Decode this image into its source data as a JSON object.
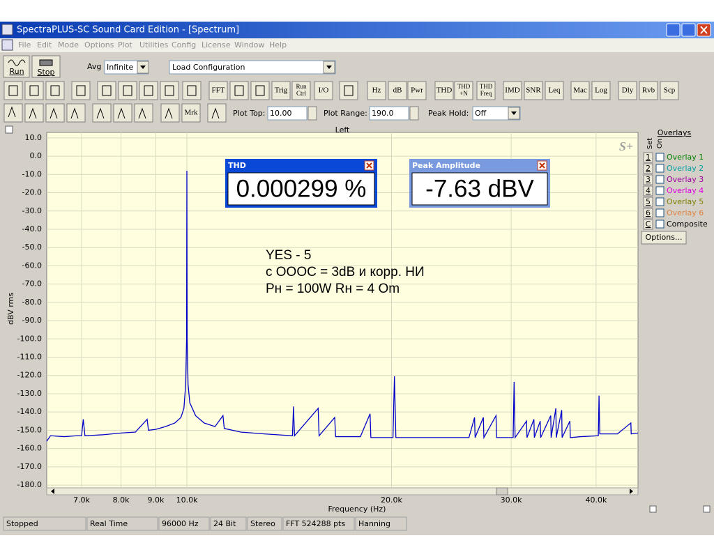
{
  "window": {
    "title": "SpectraPLUS-SC Sound Card Edition - [Spectrum]"
  },
  "menu": [
    "File",
    "Edit",
    "Mode",
    "Options",
    "Plot",
    "Utilities",
    "Config",
    "License",
    "Window",
    "Help"
  ],
  "toolbar": {
    "run": "Run",
    "stop": "Stop",
    "avg_label": "Avg",
    "avg_value": "Infinite",
    "config": "Load Configuration",
    "buttons": [
      [
        "FFT"
      ],
      [
        "Trig"
      ],
      [
        "Run",
        "Ctrl"
      ],
      [
        "I/O"
      ],
      [
        "Hz"
      ],
      [
        "dB"
      ],
      [
        "Pwr"
      ],
      [
        "THD"
      ],
      [
        "THD",
        "+N"
      ],
      [
        "THD",
        "Freq"
      ],
      [
        "IMD"
      ],
      [
        "SNR"
      ],
      [
        "Leq"
      ],
      [
        "Mac"
      ],
      [
        "Log"
      ],
      [
        "Dly"
      ],
      [
        "Rvb"
      ],
      [
        "Scp"
      ]
    ],
    "marker": "Mrk",
    "plot_top_label": "Plot Top:",
    "plot_top": "10.00",
    "plot_range_label": "Plot Range:",
    "plot_range": "190.0",
    "peak_hold_label": "Peak Hold:",
    "peak_hold": "Off"
  },
  "chart_data": {
    "type": "line",
    "title": "Left",
    "x_label": "Frequency (Hz)",
    "y_label": "dBV rms",
    "watermark": "S+",
    "x_log": true,
    "grid": true,
    "color": "#0000c8",
    "x": [
      6220,
      6300,
      6600,
      6900,
      7000,
      7040,
      7080,
      7500,
      8000,
      8400,
      8740,
      8780,
      9000,
      9300,
      9600,
      9800,
      9900,
      9960,
      9990,
      10000,
      10010,
      10040,
      10100,
      10300,
      10600,
      11000,
      11300,
      11350,
      12000,
      13000,
      14300,
      14350,
      14400,
      15600,
      15650,
      16500,
      16550,
      18000,
      18600,
      18650,
      20100,
      20200,
      20300,
      23000,
      26000,
      26500,
      26550,
      27300,
      27350,
      28500,
      28550,
      30200,
      30300,
      30400,
      31600,
      31650,
      32400,
      32450,
      33100,
      33150,
      34300,
      34350,
      34900,
      34950,
      35600,
      35650,
      36600,
      36650,
      38000,
      40300,
      40400,
      40500,
      43000,
      45000,
      45050,
      46100
    ],
    "values": [
      -156,
      -153,
      -153.5,
      -153,
      -153,
      -144,
      -153,
      -152.5,
      -151.5,
      -151,
      -144,
      -150,
      -149.5,
      -148,
      -146,
      -143,
      -138,
      -125,
      -100,
      -8,
      -100,
      -125,
      -135,
      -142,
      -146,
      -148,
      -142,
      -149,
      -151,
      -152,
      -153,
      -137,
      -153,
      -138,
      -153,
      -143,
      -153.5,
      -153.5,
      -141,
      -154,
      -154,
      -120.5,
      -154,
      -154,
      -154,
      -143,
      -154,
      -143,
      -154,
      -142,
      -154,
      -154,
      -123.5,
      -154,
      -145,
      -154,
      -144,
      -154,
      -145,
      -154,
      -142,
      -154,
      -138,
      -154,
      -139,
      -154,
      -145,
      -154,
      -153.5,
      -153,
      -131,
      -152,
      -152,
      -146,
      -152,
      -151.5
    ],
    "xlim": [
      6220,
      46100
    ],
    "ylim": [
      -181.5,
      13
    ],
    "xticks": [
      {
        "value": 7000,
        "label": "7.0k"
      },
      {
        "value": 8000,
        "label": "8.0k"
      },
      {
        "value": 9000,
        "label": "9.0k"
      },
      {
        "value": 10000,
        "label": "10.0k"
      },
      {
        "value": 20000,
        "label": "20.0k"
      },
      {
        "value": 30000,
        "label": "30.0k"
      },
      {
        "value": 40000,
        "label": "40.0k"
      }
    ],
    "yticks": [
      {
        "value": 10,
        "label": "10.0"
      },
      {
        "value": 0,
        "label": "0.0"
      },
      {
        "value": -10,
        "label": "-10.0"
      },
      {
        "value": -20,
        "label": "-20.0"
      },
      {
        "value": -30,
        "label": "-30.0"
      },
      {
        "value": -40,
        "label": "-40.0"
      },
      {
        "value": -50,
        "label": "-50.0"
      },
      {
        "value": -60,
        "label": "-60.0"
      },
      {
        "value": -70,
        "label": "-70.0"
      },
      {
        "value": -80,
        "label": "-80.0"
      },
      {
        "value": -90,
        "label": "-90.0"
      },
      {
        "value": -100,
        "label": "-100.0"
      },
      {
        "value": -110,
        "label": "-110.0"
      },
      {
        "value": -120,
        "label": "-120.0"
      },
      {
        "value": -130,
        "label": "-130.0"
      },
      {
        "value": -140,
        "label": "-140.0"
      },
      {
        "value": -150,
        "label": "-150.0"
      },
      {
        "value": -160,
        "label": "-160.0"
      },
      {
        "value": -170,
        "label": "-170.0"
      },
      {
        "value": -180,
        "label": "-180.0"
      }
    ],
    "annotations": [
      "YES - 5",
      "с ОООС = 3dB и корр. НИ",
      "Рн = 100W  Rн = 4 Om"
    ]
  },
  "meters": [
    {
      "title": "THD",
      "value": "0.000299 %"
    },
    {
      "title": "Peak Amplitude",
      "value": "-7.63 dBV"
    }
  ],
  "overlays": {
    "title": "Overlays",
    "set_label": "Set",
    "on_label": "On",
    "items": [
      {
        "key": "1",
        "name": "Overlay 1",
        "color": "#008000"
      },
      {
        "key": "2",
        "name": "Overlay 2",
        "color": "#00a0a0"
      },
      {
        "key": "3",
        "name": "Overlay 3",
        "color": "#a000a0"
      },
      {
        "key": "4",
        "name": "Overlay 4",
        "color": "#e000e0"
      },
      {
        "key": "5",
        "name": "Overlay 5",
        "color": "#808000"
      },
      {
        "key": "6",
        "name": "Overlay 6",
        "color": "#e08040"
      },
      {
        "key": "C",
        "name": "Composite",
        "color": "#000000"
      }
    ],
    "button": "Options..."
  },
  "status": [
    "Stopped",
    "Real Time",
    "96000 Hz",
    "24 Bit",
    "Stereo",
    "FFT 524288 pts",
    "Hanning"
  ]
}
